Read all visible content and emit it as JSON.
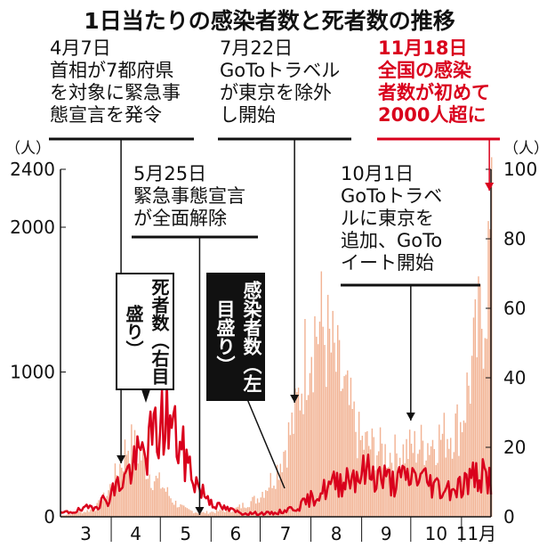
{
  "title": "1日当たりの感染者数と死者数の推移",
  "unit_left": "（人）",
  "unit_right": "（人）",
  "annotations": {
    "apr7": {
      "date": "4月7日",
      "lines": [
        "首相が7都府県",
        "を対象に緊急事",
        "態宣言を発令"
      ]
    },
    "may25": {
      "date": "5月25日",
      "lines": [
        "緊急事態宣言",
        "が全面解除"
      ]
    },
    "jul22": {
      "date": "7月22日",
      "lines": [
        "GoToトラベル",
        "が東京を除外",
        "し開始"
      ]
    },
    "oct1": {
      "date": "10月1日",
      "lines": [
        "GoToトラベ",
        "ルに東京を",
        "追加、GoTo",
        "イート開始"
      ]
    },
    "nov18": {
      "date": "11月18日",
      "lines": [
        "全国の感染",
        "者数が初めて",
        "2000人超に"
      ]
    }
  },
  "label_deaths": {
    "main": "死者数",
    "sub": "（右目盛り）"
  },
  "label_cases": {
    "main": "感染者数",
    "sub": "（左目盛り）"
  },
  "colors": {
    "cases": "#f2b394",
    "deaths": "#d9001c",
    "text": "#111111",
    "highlight": "#d9001c"
  },
  "chart_data": {
    "type": "bar+line",
    "x_range": [
      "3/1",
      "11/19"
    ],
    "x_tick_labels": [
      "3",
      "4",
      "5",
      "6",
      "7",
      "8",
      "9",
      "10",
      "11月"
    ],
    "y_left": {
      "min": 0,
      "max": 2400,
      "ticks": [
        0,
        1000,
        2000,
        2400
      ]
    },
    "y_right": {
      "min": 0,
      "max": 100,
      "ticks": [
        0,
        20,
        40,
        60,
        80,
        100
      ]
    },
    "grid": false,
    "series": [
      {
        "name": "感染者数",
        "type": "bar",
        "axis": "left",
        "monthly_points": [
          [
            "3/1",
            10
          ],
          [
            "3/8",
            30
          ],
          [
            "3/15",
            40
          ],
          [
            "3/22",
            70
          ],
          [
            "3/29",
            180
          ],
          [
            "4/5",
            380
          ],
          [
            "4/11",
            600
          ],
          [
            "4/18",
            520
          ],
          [
            "4/25",
            330
          ],
          [
            "5/2",
            250
          ],
          [
            "5/9",
            120
          ],
          [
            "5/16",
            60
          ],
          [
            "5/25",
            30
          ],
          [
            "6/1",
            40
          ],
          [
            "6/15",
            60
          ],
          [
            "6/29",
            150
          ],
          [
            "7/10",
            350
          ],
          [
            "7/22",
            800
          ],
          [
            "7/31",
            1500
          ],
          [
            "8/7",
            1550
          ],
          [
            "8/14",
            1300
          ],
          [
            "8/21",
            1000
          ],
          [
            "8/31",
            600
          ],
          [
            "9/10",
            550
          ],
          [
            "9/20",
            500
          ],
          [
            "9/30",
            550
          ],
          [
            "10/10",
            600
          ],
          [
            "10/20",
            650
          ],
          [
            "10/31",
            750
          ],
          [
            "11/7",
            1200
          ],
          [
            "11/14",
            1700
          ],
          [
            "11/18",
            2200
          ]
        ]
      },
      {
        "name": "死者数",
        "type": "line",
        "axis": "right",
        "monthly_points": [
          [
            "3/1",
            1
          ],
          [
            "3/15",
            2
          ],
          [
            "3/29",
            5
          ],
          [
            "4/10",
            12
          ],
          [
            "4/20",
            18
          ],
          [
            "4/30",
            25
          ],
          [
            "5/5",
            29
          ],
          [
            "5/15",
            18
          ],
          [
            "5/25",
            8
          ],
          [
            "6/5",
            3
          ],
          [
            "6/20",
            1
          ],
          [
            "7/10",
            1
          ],
          [
            "7/25",
            3
          ],
          [
            "8/10",
            8
          ],
          [
            "8/25",
            12
          ],
          [
            "9/5",
            13
          ],
          [
            "9/20",
            10
          ],
          [
            "10/5",
            12
          ],
          [
            "10/20",
            8
          ],
          [
            "11/1",
            9
          ],
          [
            "11/10",
            12
          ],
          [
            "11/18",
            11
          ]
        ]
      }
    ]
  }
}
